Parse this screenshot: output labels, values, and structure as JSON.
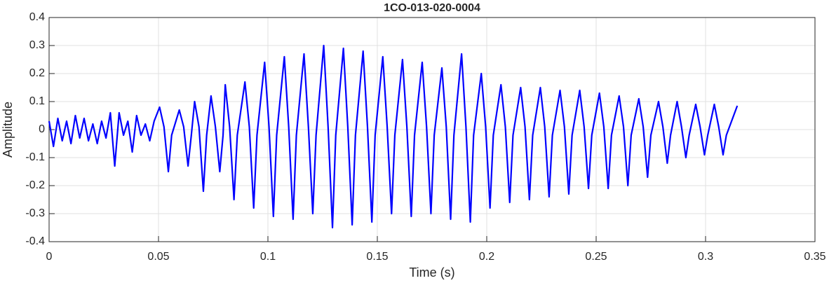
{
  "chart_data": {
    "type": "line",
    "title": "1CO-013-020-0004",
    "x_label": "Time (s)",
    "y_label": "Amplitude",
    "xlim": [
      0,
      0.35
    ],
    "xticks": [
      0,
      0.05,
      0.1,
      0.15,
      0.2,
      0.25,
      0.3,
      0.35
    ],
    "ylim": [
      -0.4,
      0.4
    ],
    "yticks": [
      -0.4,
      -0.3,
      -0.2,
      -0.1,
      0,
      0.1,
      0.2,
      0.3,
      0.4
    ],
    "grid": true,
    "series": [
      {
        "color": "#0000ff",
        "x": [
          0,
          0.002,
          0.004,
          0.006,
          0.008,
          0.01,
          0.012,
          0.014,
          0.016,
          0.018,
          0.02,
          0.022,
          0.024,
          0.026,
          0.028,
          0.03,
          0.032,
          0.034,
          0.036,
          0.038,
          0.04,
          0.042,
          0.044,
          0.046,
          0.048,
          0.0505,
          0.0525,
          0.0545,
          0.056,
          0.0595,
          0.0615,
          0.0635,
          0.065,
          0.0665,
          0.0685,
          0.0705,
          0.072,
          0.074,
          0.076,
          0.078,
          0.0795,
          0.0805,
          0.0825,
          0.0845,
          0.086,
          0.0895,
          0.0915,
          0.0935,
          0.095,
          0.0985,
          0.1005,
          0.1025,
          0.104,
          0.1075,
          0.1095,
          0.1115,
          0.113,
          0.1165,
          0.1185,
          0.1205,
          0.122,
          0.1255,
          0.1275,
          0.1295,
          0.131,
          0.1345,
          0.1365,
          0.1385,
          0.14,
          0.1435,
          0.1455,
          0.1475,
          0.149,
          0.1525,
          0.1545,
          0.1565,
          0.158,
          0.1615,
          0.1635,
          0.1655,
          0.167,
          0.1705,
          0.1725,
          0.1745,
          0.176,
          0.1795,
          0.1815,
          0.1835,
          0.185,
          0.1885,
          0.1905,
          0.1925,
          0.194,
          0.1975,
          0.1995,
          0.2015,
          0.203,
          0.2065,
          0.2085,
          0.2105,
          0.212,
          0.2155,
          0.2175,
          0.2195,
          0.221,
          0.2245,
          0.2265,
          0.2285,
          0.23,
          0.2335,
          0.2355,
          0.2375,
          0.239,
          0.2425,
          0.2445,
          0.2465,
          0.248,
          0.2515,
          0.2535,
          0.2555,
          0.257,
          0.2605,
          0.2625,
          0.2645,
          0.266,
          0.2695,
          0.2715,
          0.2735,
          0.275,
          0.2785,
          0.2805,
          0.2825,
          0.284,
          0.287,
          0.289,
          0.291,
          0.2925,
          0.2955,
          0.2975,
          0.2995,
          0.301,
          0.304,
          0.306,
          0.308,
          0.3095,
          0.3145
        ],
        "values": [
          0.03,
          -0.06,
          0.04,
          -0.04,
          0.03,
          -0.05,
          0.05,
          -0.03,
          0.04,
          -0.04,
          0.02,
          -0.05,
          0.03,
          -0.03,
          0.06,
          -0.13,
          0.06,
          -0.02,
          0.03,
          -0.08,
          0.05,
          -0.02,
          0.02,
          -0.04,
          0.03,
          0.08,
          0.01,
          -0.15,
          -0.02,
          0.07,
          0.01,
          -0.13,
          -0.02,
          0.1,
          0.01,
          -0.22,
          -0.02,
          0.12,
          0.01,
          -0.15,
          -0.02,
          0.16,
          0.01,
          -0.25,
          -0.02,
          0.17,
          0.01,
          -0.28,
          -0.02,
          0.24,
          0.01,
          -0.31,
          -0.02,
          0.26,
          0.01,
          -0.32,
          -0.02,
          0.27,
          0.01,
          -0.3,
          -0.02,
          0.3,
          0.01,
          -0.35,
          -0.02,
          0.29,
          0.01,
          -0.34,
          -0.02,
          0.28,
          0.01,
          -0.33,
          -0.02,
          0.26,
          0.01,
          -0.3,
          -0.02,
          0.25,
          0.01,
          -0.31,
          -0.02,
          0.24,
          0.01,
          -0.3,
          -0.02,
          0.22,
          0.01,
          -0.32,
          -0.02,
          0.27,
          0.01,
          -0.33,
          -0.02,
          0.2,
          0.01,
          -0.28,
          -0.02,
          0.16,
          0.01,
          -0.26,
          -0.02,
          0.15,
          0.01,
          -0.25,
          -0.02,
          0.15,
          0.01,
          -0.24,
          -0.02,
          0.14,
          0.01,
          -0.23,
          -0.02,
          0.14,
          0.01,
          -0.21,
          -0.02,
          0.13,
          0.01,
          -0.21,
          -0.02,
          0.12,
          0.01,
          -0.2,
          -0.02,
          0.11,
          0.01,
          -0.17,
          -0.02,
          0.1,
          0.01,
          -0.12,
          -0.02,
          0.1,
          0.01,
          -0.1,
          -0.02,
          0.09,
          0.01,
          -0.09,
          -0.02,
          0.09,
          0.01,
          -0.09,
          -0.02,
          0.085
        ]
      }
    ]
  }
}
